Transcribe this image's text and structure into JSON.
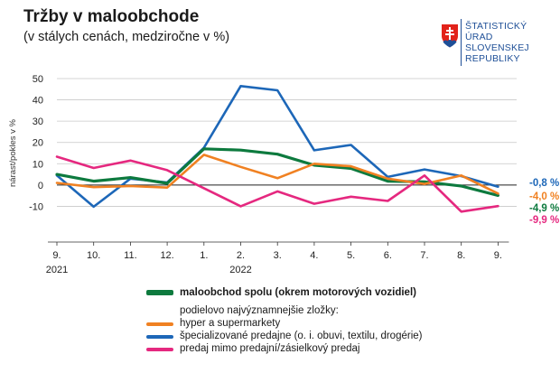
{
  "header": {
    "title": "Tržby v maloobchode",
    "subtitle": "(v stálych cenách, medziročne v %)"
  },
  "logo": {
    "lines": [
      "ŠTATISTICKÝ",
      "ÚRAD",
      "SLOVENSKEJ",
      "REPUBLIKY"
    ],
    "color": "#1e4f97"
  },
  "chart_data": {
    "type": "line",
    "title": "Tržby v maloobchode",
    "subtitle": "(v stálych cenách, medziročne v %)",
    "ylabel": "nárast/pokles v %",
    "xlabel": "",
    "ylim": [
      -20,
      50
    ],
    "yticks": [
      -10,
      0,
      10,
      20,
      30,
      40,
      50
    ],
    "categories": [
      "9.",
      "10.",
      "11.",
      "12.",
      "1.",
      "2.",
      "3.",
      "4.",
      "5.",
      "6.",
      "7.",
      "8.",
      "9."
    ],
    "year_labels": [
      {
        "index": 0,
        "label": "2021"
      },
      {
        "index": 5,
        "label": "2022"
      }
    ],
    "grid": "horizontal",
    "series": [
      {
        "key": "total",
        "name": "maloobchod spolu (okrem motorových vozidiel)",
        "color": "#0d7a3e",
        "values": [
          5.0,
          1.8,
          3.5,
          0.8,
          17.0,
          16.4,
          14.5,
          9.3,
          7.8,
          1.8,
          1.5,
          -0.5,
          -4.9
        ],
        "end_label": "-4,9 %"
      },
      {
        "key": "hyper",
        "name": "hyper a supermarkety",
        "color": "#f08122",
        "values": [
          1.0,
          -1.0,
          -0.5,
          -1.2,
          14.2,
          8.5,
          3.2,
          10.0,
          8.8,
          3.0,
          0.5,
          4.5,
          -4.0
        ],
        "end_label": "-4,0 %"
      },
      {
        "key": "special",
        "name": "špecializované predajne (o. i. obuvi, textilu, drogérie)",
        "color": "#1d67b8",
        "values": [
          4.5,
          -10.2,
          3.0,
          1.2,
          17.5,
          46.5,
          44.5,
          16.3,
          18.8,
          3.8,
          7.3,
          4.2,
          -0.8
        ],
        "end_label": "-0,8 %"
      },
      {
        "key": "nonstore",
        "name": "predaj mimo predajní/zásielkový predaj",
        "color": "#e5287f",
        "values": [
          13.3,
          8.0,
          11.5,
          7.0,
          -1.5,
          -10.0,
          -3.0,
          -8.8,
          -5.5,
          -7.5,
          4.5,
          -12.5,
          -9.9
        ],
        "end_label": "-9,9 %"
      }
    ]
  },
  "legend": {
    "main": "maloobchod spolu (okrem motorových vozidiel)",
    "subheading": "podielovo najvýznamnejšie zložky:",
    "items": [
      "hyper a supermarkety",
      "špecializované predajne (o. i. obuvi, textilu, drogérie)",
      "predaj mimo predajní/zásielkový predaj"
    ]
  }
}
